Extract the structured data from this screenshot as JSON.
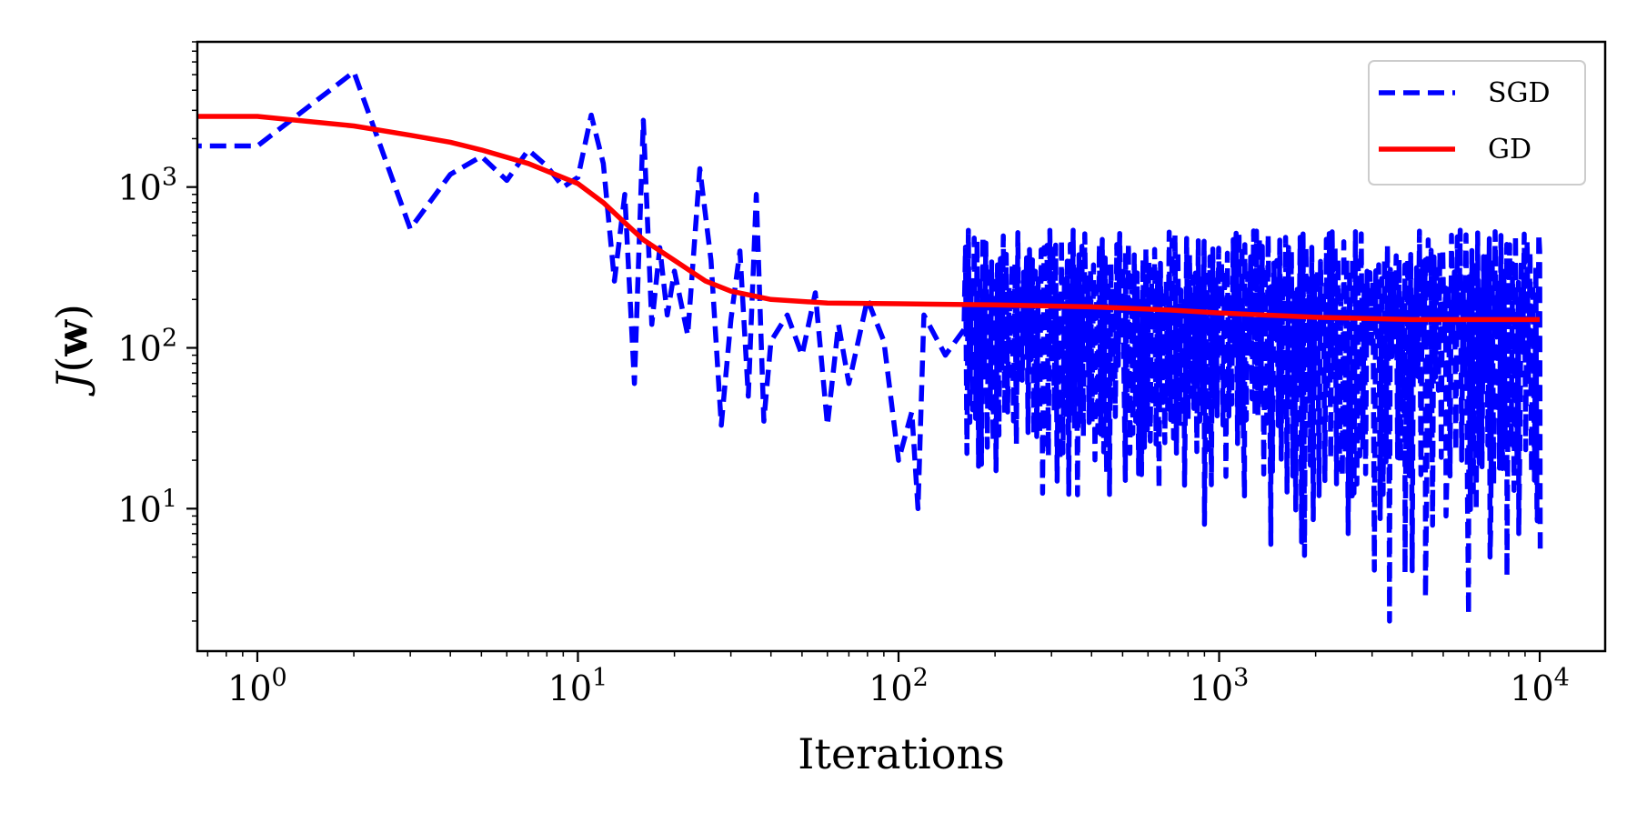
{
  "chart_data": {
    "type": "line",
    "xlabel": "Iterations",
    "ylabel": "J(w)",
    "x_scale": "log",
    "y_scale": "log",
    "xlim": [
      0.65,
      16000
    ],
    "ylim": [
      1.3,
      8000
    ],
    "x_ticks": [
      {
        "value": 1,
        "base": "10",
        "exp": "0"
      },
      {
        "value": 10,
        "base": "10",
        "exp": "1"
      },
      {
        "value": 100,
        "base": "10",
        "exp": "2"
      },
      {
        "value": 1000,
        "base": "10",
        "exp": "3"
      },
      {
        "value": 10000,
        "base": "10",
        "exp": "4"
      }
    ],
    "y_ticks": [
      {
        "value": 10,
        "base": "10",
        "exp": "1"
      },
      {
        "value": 100,
        "base": "10",
        "exp": "2"
      },
      {
        "value": 1000,
        "base": "10",
        "exp": "3"
      }
    ],
    "grid": false,
    "legend_position": "top-right",
    "series": [
      {
        "name": "SGD",
        "color": "#0000ff",
        "style": "dashed",
        "kind": "noisy",
        "points": [
          [
            0.5,
            1800
          ],
          [
            1,
            1800
          ],
          [
            2,
            5200
          ],
          [
            3,
            550
          ],
          [
            4,
            1200
          ],
          [
            5,
            1550
          ],
          [
            6,
            1100
          ],
          [
            7,
            1700
          ],
          [
            8,
            1350
          ],
          [
            9,
            1000
          ],
          [
            10,
            1150
          ],
          [
            11,
            2800
          ],
          [
            12,
            1400
          ],
          [
            13,
            260
          ],
          [
            14,
            900
          ],
          [
            15,
            60
          ],
          [
            16,
            2600
          ],
          [
            17,
            140
          ],
          [
            18,
            420
          ],
          [
            19,
            160
          ],
          [
            20,
            300
          ],
          [
            22,
            120
          ],
          [
            24,
            1300
          ],
          [
            26,
            350
          ],
          [
            28,
            33
          ],
          [
            30,
            150
          ],
          [
            32,
            400
          ],
          [
            34,
            50
          ],
          [
            36,
            900
          ],
          [
            38,
            35
          ],
          [
            40,
            110
          ],
          [
            45,
            160
          ],
          [
            50,
            90
          ],
          [
            55,
            220
          ],
          [
            60,
            33
          ],
          [
            65,
            140
          ],
          [
            70,
            60
          ],
          [
            80,
            200
          ],
          [
            90,
            110
          ],
          [
            100,
            20
          ],
          [
            110,
            40
          ],
          [
            115,
            10
          ],
          [
            120,
            160
          ],
          [
            140,
            90
          ],
          [
            160,
            130
          ]
        ],
        "noise": {
          "start": 160,
          "end": 10000,
          "upper_min": 200,
          "upper_max": 540,
          "lower_min": 12,
          "lower_max": 45,
          "lower_min_late": 4,
          "lower_max_late": 25,
          "spikes": [
            {
              "x": 115,
              "y": 10
            },
            {
              "x": 510,
              "y": 15
            },
            {
              "x": 780,
              "y": 14
            },
            {
              "x": 900,
              "y": 8
            },
            {
              "x": 1200,
              "y": 12
            },
            {
              "x": 1450,
              "y": 6
            },
            {
              "x": 2600,
              "y": 12
            },
            {
              "x": 3400,
              "y": 2
            },
            {
              "x": 3800,
              "y": 4
            },
            {
              "x": 4400,
              "y": 2.8
            },
            {
              "x": 5100,
              "y": 9
            },
            {
              "x": 6000,
              "y": 2.2
            },
            {
              "x": 7000,
              "y": 5
            },
            {
              "x": 7900,
              "y": 3.8
            },
            {
              "x": 8600,
              "y": 7
            },
            {
              "x": 9800,
              "y": 9
            }
          ]
        }
      },
      {
        "name": "GD",
        "color": "#ff0000",
        "style": "solid",
        "kind": "smooth",
        "points": [
          [
            0.5,
            2750
          ],
          [
            1,
            2750
          ],
          [
            2,
            2400
          ],
          [
            3,
            2100
          ],
          [
            4,
            1900
          ],
          [
            5,
            1700
          ],
          [
            7,
            1400
          ],
          [
            10,
            1050
          ],
          [
            12,
            800
          ],
          [
            14,
            600
          ],
          [
            16,
            470
          ],
          [
            20,
            350
          ],
          [
            25,
            260
          ],
          [
            30,
            225
          ],
          [
            40,
            200
          ],
          [
            60,
            190
          ],
          [
            100,
            188
          ],
          [
            200,
            185
          ],
          [
            400,
            180
          ],
          [
            700,
            172
          ],
          [
            1000,
            165
          ],
          [
            2000,
            155
          ],
          [
            4000,
            150
          ],
          [
            10000,
            150
          ]
        ]
      }
    ]
  }
}
